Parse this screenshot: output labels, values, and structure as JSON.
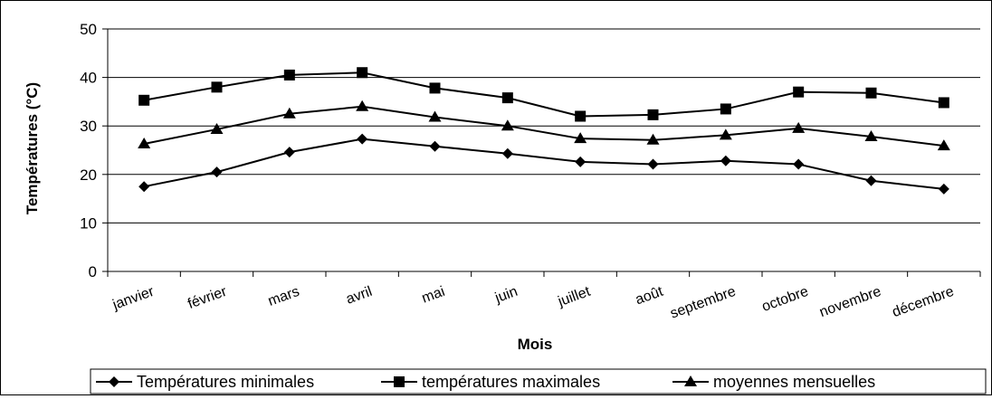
{
  "chart_data": {
    "type": "line",
    "xlabel": "Mois",
    "ylabel": "Températures (°C)",
    "ylim": [
      0,
      50
    ],
    "yticks": [
      0,
      10,
      20,
      30,
      40,
      50
    ],
    "grid": "horizontal",
    "legend_position": "bottom",
    "categories": [
      "janvier",
      "février",
      "mars",
      "avril",
      "mai",
      "juin",
      "juillet",
      "août",
      "septembre",
      "octobre",
      "novembre",
      "décembre"
    ],
    "series": [
      {
        "name": "Températures minimales",
        "marker": "diamond",
        "color": "#000000",
        "values": [
          17.5,
          20.5,
          24.6,
          27.3,
          25.8,
          24.3,
          22.6,
          22.1,
          22.8,
          22.1,
          18.7,
          17.0
        ]
      },
      {
        "name": "températures maximales",
        "marker": "square",
        "color": "#000000",
        "values": [
          35.3,
          38.0,
          40.5,
          41.0,
          37.8,
          35.8,
          32.0,
          32.3,
          33.5,
          37.0,
          36.8,
          34.8
        ]
      },
      {
        "name": "moyennes mensuelles",
        "marker": "triangle",
        "color": "#000000",
        "values": [
          26.3,
          29.3,
          32.5,
          34.0,
          31.8,
          30.0,
          27.4,
          27.1,
          28.1,
          29.5,
          27.8,
          25.9
        ]
      }
    ]
  }
}
